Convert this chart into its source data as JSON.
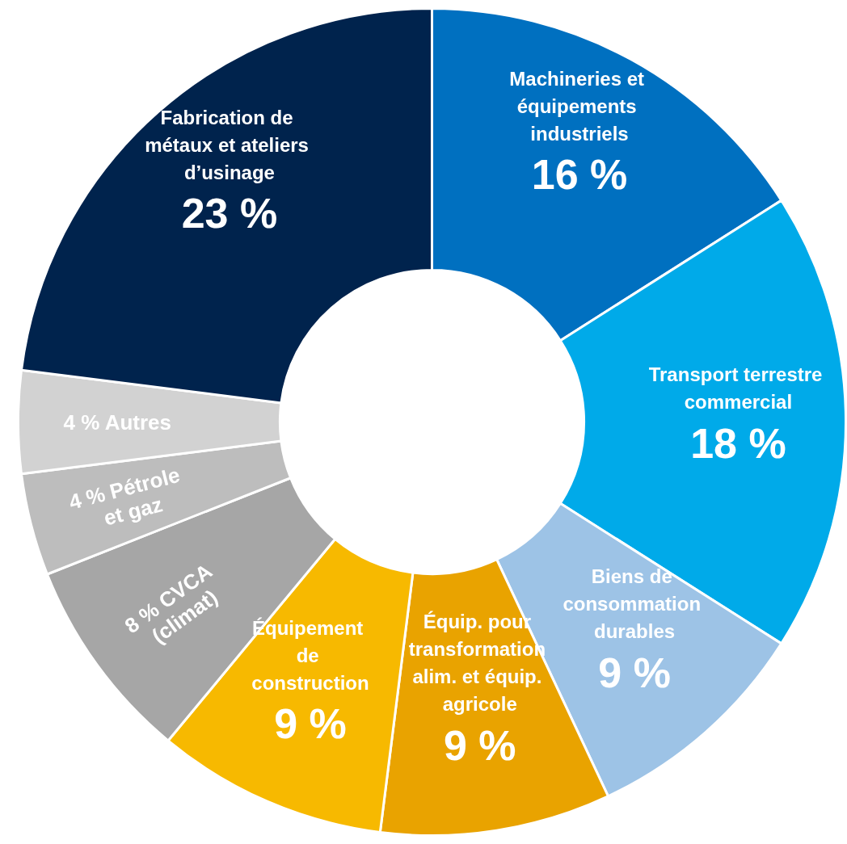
{
  "chart_data": {
    "type": "donut",
    "categories": [
      "Machineries et équipements industriels",
      "Transport terrestre commercial",
      "Biens de consommation durables",
      "Équip. pour transformation alim. et équip. agricole",
      "Équipement de construction",
      "CVCA (climat)",
      "Pétrole et gaz",
      "Autres",
      "Fabrication de métaux et ateliers d’usinage"
    ],
    "values": [
      16,
      18,
      9,
      9,
      9,
      8,
      4,
      4,
      23
    ],
    "colors": [
      "#0070c0",
      "#00aae9",
      "#9dc3e6",
      "#e9a300",
      "#f7b900",
      "#a6a6a6",
      "#bdbdbd",
      "#d2d2d2",
      "#00234d"
    ],
    "value_labels": [
      "16 %",
      "18 %",
      "9 %",
      "9 %",
      "9 %",
      "8 %",
      "4 %",
      "4 %",
      "23 %"
    ],
    "legend": false
  }
}
